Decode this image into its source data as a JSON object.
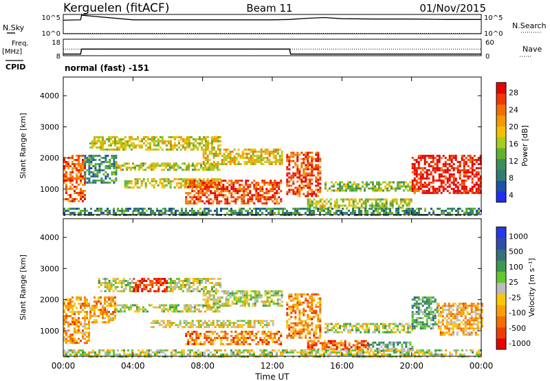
{
  "header": {
    "station": "Kerguelen (fitACF)",
    "beam": "Beam 11",
    "date": "01/Nov/2015"
  },
  "left_labels": {
    "nsky": "N.Sky",
    "freq_line1": "Freq.",
    "freq_line2": "[MHz]",
    "cpid": "CPID"
  },
  "right_labels": {
    "nsearch": "N.Search",
    "nave": "Nave"
  },
  "cpid_text": "normal (fast) -151",
  "colors": {
    "power": [
      "#1e2ff0",
      "#1f4fa8",
      "#2f7c74",
      "#3c8f5c",
      "#66b030",
      "#a8cc1e",
      "#f5c000",
      "#f29a00",
      "#f27000",
      "#f03a00",
      "#e80000"
    ],
    "velocity": [
      "#e60000",
      "#f03c00",
      "#f57000",
      "#f8a000",
      "#fcc800",
      "#bcbcbc",
      "#62c832",
      "#3c9a4e",
      "#36727a",
      "#2f4ea8",
      "#2838e6"
    ]
  },
  "chart_data": [
    {
      "type": "line",
      "title": "N.Sky / N.Search",
      "left_ticks": [
        "10^5",
        "10^0"
      ],
      "right_ticks": [
        "10^5",
        "10^0"
      ],
      "x": [
        0,
        1,
        1.05,
        4,
        8,
        12,
        13,
        14,
        15,
        16,
        18,
        20,
        22,
        24
      ],
      "series": [
        {
          "name": "N.Sky",
          "values": [
            3.5,
            3.6,
            4.8,
            3.6,
            3.6,
            3.6,
            3.7,
            4.0,
            4.2,
            3.9,
            3.8,
            3.8,
            3.7,
            3.7
          ]
        },
        {
          "name": "N.Search",
          "values": [
            0,
            0,
            0,
            0,
            0,
            0,
            0,
            0,
            0,
            0,
            0,
            0,
            0,
            0
          ]
        }
      ]
    },
    {
      "type": "line",
      "title": "Freq. [MHz] / Nave",
      "left_ticks": [
        "18",
        "8"
      ],
      "right_ticks": [
        "60",
        "0"
      ],
      "x": [
        0,
        1,
        1.05,
        13,
        13.05,
        24
      ],
      "series": [
        {
          "name": "Freq.",
          "values": [
            9.0,
            9.0,
            12.0,
            12.0,
            9.0,
            9.0
          ]
        },
        {
          "name": "Nave",
          "values": [
            24,
            24,
            24,
            24,
            24,
            24
          ]
        }
      ]
    },
    {
      "type": "heatmap",
      "title": "Power [dB]",
      "ylabel": "Slant Range [km]",
      "yticks": [
        1000,
        2000,
        3000,
        4000
      ],
      "ylim": [
        180,
        4600
      ],
      "xlim": [
        0,
        24
      ],
      "colorbar_label": "Power [dB]",
      "colorbar_ticks": [
        "4",
        "8",
        "12",
        "16",
        "20",
        "24",
        "28"
      ],
      "regions": [
        {
          "t0": 0.0,
          "t1": 1.2,
          "r0": 600,
          "r1": 2100,
          "level": 0.8
        },
        {
          "t0": 1.2,
          "t1": 3.0,
          "r0": 1200,
          "r1": 2100,
          "level": 0.3
        },
        {
          "t0": 1.5,
          "t1": 9.0,
          "r0": 2300,
          "r1": 2700,
          "level": 0.55
        },
        {
          "t0": 3.0,
          "t1": 9.0,
          "r0": 1600,
          "r1": 1850,
          "level": 0.5
        },
        {
          "t0": 3.5,
          "t1": 9.0,
          "r0": 1050,
          "r1": 1350,
          "level": 0.55
        },
        {
          "t0": 7.0,
          "t1": 12.5,
          "r0": 550,
          "r1": 1300,
          "level": 0.85
        },
        {
          "t0": 8.0,
          "t1": 12.5,
          "r0": 1800,
          "r1": 2300,
          "level": 0.6
        },
        {
          "t0": 12.8,
          "t1": 14.8,
          "r0": 750,
          "r1": 2200,
          "level": 0.85
        },
        {
          "t0": 14.0,
          "t1": 20.0,
          "r0": 380,
          "r1": 700,
          "level": 0.5
        },
        {
          "t0": 15.0,
          "t1": 20.0,
          "r0": 950,
          "r1": 1250,
          "level": 0.45
        },
        {
          "t0": 20.0,
          "t1": 24.0,
          "r0": 850,
          "r1": 2100,
          "level": 0.95
        },
        {
          "t0": 0.0,
          "t1": 24.0,
          "r0": 200,
          "r1": 400,
          "level": 0.3
        }
      ]
    },
    {
      "type": "heatmap",
      "title": "Velocity [m s-1]",
      "ylabel": "Slant Range [km]",
      "xlabel": "Time UT",
      "yticks": [
        1000,
        2000,
        3000,
        4000
      ],
      "ylim": [
        180,
        4600
      ],
      "xlim": [
        0,
        24
      ],
      "xticks": [
        "00:00",
        "04:00",
        "08:00",
        "12:00",
        "16:00",
        "20:00",
        "00:00"
      ],
      "colorbar_label": "Velocity [m s⁻¹]",
      "colorbar_ticks": [
        "1000",
        "500",
        "100",
        "25",
        "-25",
        "-100",
        "-500",
        "-1000"
      ],
      "regions": [
        {
          "t0": 0.0,
          "t1": 1.5,
          "r0": 600,
          "r1": 2100,
          "level": 0.3
        },
        {
          "t0": 1.5,
          "t1": 3.0,
          "r0": 1300,
          "r1": 2100,
          "level": 0.3
        },
        {
          "t0": 2.0,
          "t1": 4.0,
          "r0": 2300,
          "r1": 2700,
          "level": 0.5
        },
        {
          "t0": 4.0,
          "t1": 6.0,
          "r0": 2300,
          "r1": 2700,
          "level": 0.1
        },
        {
          "t0": 6.0,
          "t1": 9.0,
          "r0": 2300,
          "r1": 2700,
          "level": 0.5
        },
        {
          "t0": 3.0,
          "t1": 9.0,
          "r0": 1600,
          "r1": 1850,
          "level": 0.5
        },
        {
          "t0": 5.0,
          "t1": 12.0,
          "r0": 1100,
          "r1": 1350,
          "level": 0.45
        },
        {
          "t0": 7.0,
          "t1": 12.5,
          "r0": 550,
          "r1": 1000,
          "level": 0.25
        },
        {
          "t0": 8.0,
          "t1": 12.5,
          "r0": 1800,
          "r1": 2300,
          "level": 0.5
        },
        {
          "t0": 12.8,
          "t1": 14.8,
          "r0": 750,
          "r1": 2200,
          "level": 0.25
        },
        {
          "t0": 14.0,
          "t1": 17.5,
          "r0": 380,
          "r1": 700,
          "level": 0.2
        },
        {
          "t0": 17.5,
          "t1": 20.0,
          "r0": 380,
          "r1": 650,
          "level": 0.65
        },
        {
          "t0": 15.0,
          "t1": 20.0,
          "r0": 950,
          "r1": 1250,
          "level": 0.5
        },
        {
          "t0": 20.0,
          "t1": 21.5,
          "r0": 1100,
          "r1": 2100,
          "level": 0.65
        },
        {
          "t0": 21.5,
          "t1": 24.0,
          "r0": 900,
          "r1": 1900,
          "level": 0.35
        },
        {
          "t0": 0.0,
          "t1": 24.0,
          "r0": 200,
          "r1": 400,
          "level": 0.5
        }
      ]
    }
  ]
}
